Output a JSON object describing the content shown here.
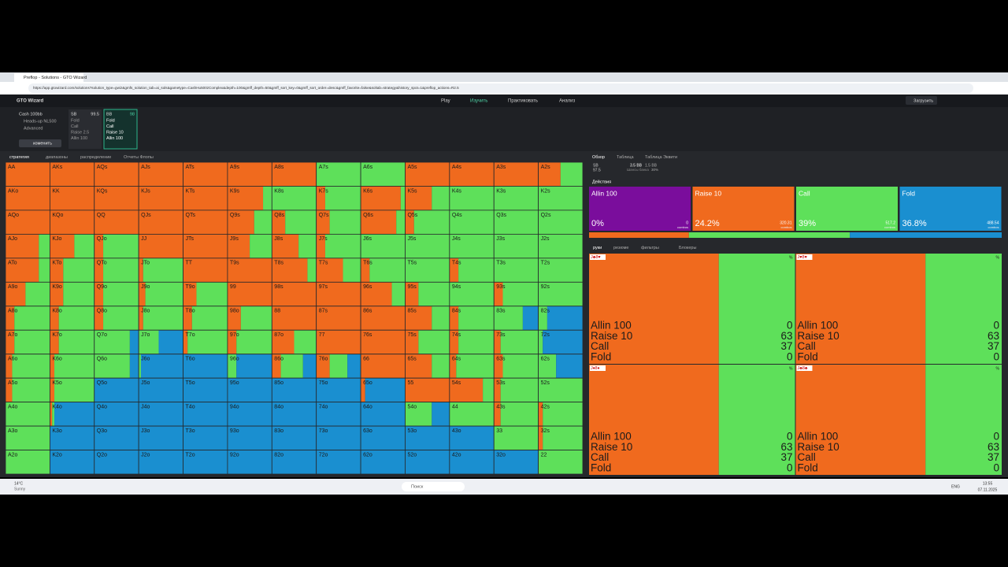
{
  "browser": {
    "tab": "Preflop - Solutions - GTO Wizard",
    "url": "https://app.gtowizard.com/solutions?solution_type=gwiz&gmfs_solution_tab=ai_sols&gametype=CashHu500zComplex&depth=100&gmff_depth=50&gmff_sort_key=0&gmff_sort_order=desc&gmff_favorite=false&soltab=strategy&history_spot=1&preflop_actions=R2.5"
  },
  "header": {
    "brand": "GTO Wizard",
    "nav": [
      "Play",
      "Изучить",
      "Практиковать",
      "Анализ"
    ],
    "upload": "Загрузить"
  },
  "setup": {
    "game": "Cash 100bb",
    "format": "Heads-up NL500",
    "level": "Advanced",
    "change": "изменить"
  },
  "positions": [
    {
      "name": "SB",
      "stack": "99.5",
      "actions": [
        "Fold",
        "Call",
        "Raise 2.5",
        "Allin 100"
      ]
    },
    {
      "name": "BB",
      "stack": "98",
      "actions": [
        "Fold",
        "Call",
        "Raise 10",
        "Allin 100"
      ]
    }
  ],
  "grid_tabs": [
    "стратегия",
    "диапазоны",
    "распределение",
    "Отчеты Флопы"
  ],
  "grid": {
    "hands": [
      [
        "AA",
        "AKs",
        "AQs",
        "AJs",
        "ATs",
        "A9s",
        "A8s",
        "A7s",
        "A6s",
        "A5s",
        "A4s",
        "A3s",
        "A2s"
      ],
      [
        "AKo",
        "KK",
        "KQs",
        "KJs",
        "KTs",
        "K9s",
        "K8s",
        "K7s",
        "K6s",
        "K5s",
        "K4s",
        "K3s",
        "K2s"
      ],
      [
        "AQo",
        "KQo",
        "QQ",
        "QJs",
        "QTs",
        "Q9s",
        "Q8s",
        "Q7s",
        "Q6s",
        "Q5s",
        "Q4s",
        "Q3s",
        "Q2s"
      ],
      [
        "AJo",
        "KJo",
        "QJo",
        "JJ",
        "JTs",
        "J9s",
        "J8s",
        "J7s",
        "J6s",
        "J5s",
        "J4s",
        "J3s",
        "J2s"
      ],
      [
        "ATo",
        "KTo",
        "QTo",
        "JTo",
        "TT",
        "T9s",
        "T8s",
        "T7s",
        "T6s",
        "T5s",
        "T4s",
        "T3s",
        "T2s"
      ],
      [
        "A9o",
        "K9o",
        "Q9o",
        "J9o",
        "T9o",
        "99",
        "98s",
        "97s",
        "96s",
        "95s",
        "94s",
        "93s",
        "92s"
      ],
      [
        "A8o",
        "K8o",
        "Q8o",
        "J8o",
        "T8o",
        "98o",
        "88",
        "87s",
        "86s",
        "85s",
        "84s",
        "83s",
        "82s"
      ],
      [
        "A7o",
        "K7o",
        "Q7o",
        "J7o",
        "T7o",
        "97o",
        "87o",
        "77",
        "76s",
        "75s",
        "74s",
        "73s",
        "72s"
      ],
      [
        "A6o",
        "K6o",
        "Q6o",
        "J6o",
        "T6o",
        "96o",
        "86o",
        "76o",
        "66",
        "65s",
        "64s",
        "63s",
        "62s"
      ],
      [
        "A5o",
        "K5o",
        "Q5o",
        "J5o",
        "T5o",
        "95o",
        "85o",
        "75o",
        "65o",
        "55",
        "54s",
        "53s",
        "52s"
      ],
      [
        "A4o",
        "K4o",
        "Q4o",
        "J4o",
        "T4o",
        "94o",
        "84o",
        "74o",
        "64o",
        "54o",
        "44",
        "43s",
        "42s"
      ],
      [
        "A3o",
        "K3o",
        "Q3o",
        "J3o",
        "T3o",
        "93o",
        "83o",
        "73o",
        "63o",
        "53o",
        "43o",
        "33",
        "32s"
      ],
      [
        "A2o",
        "K2o",
        "Q2o",
        "J2o",
        "T2o",
        "92o",
        "82o",
        "72o",
        "62o",
        "52o",
        "42o",
        "32o",
        "22"
      ]
    ],
    "raise": [
      [
        100,
        100,
        100,
        100,
        100,
        100,
        100,
        0,
        0,
        100,
        100,
        100,
        50
      ],
      [
        100,
        100,
        100,
        100,
        100,
        80,
        0,
        20,
        90,
        60,
        0,
        0,
        0
      ],
      [
        100,
        100,
        100,
        100,
        100,
        60,
        30,
        30,
        80,
        20,
        0,
        0,
        0
      ],
      [
        75,
        55,
        20,
        100,
        100,
        50,
        60,
        20,
        0,
        0,
        0,
        0,
        0
      ],
      [
        75,
        30,
        20,
        10,
        100,
        100,
        80,
        60,
        20,
        0,
        20,
        0,
        0
      ],
      [
        45,
        30,
        20,
        15,
        30,
        100,
        100,
        100,
        70,
        30,
        0,
        20,
        0
      ],
      [
        20,
        20,
        20,
        10,
        20,
        30,
        100,
        100,
        100,
        60,
        20,
        0,
        0
      ],
      [
        20,
        20,
        0,
        0,
        10,
        20,
        50,
        100,
        100,
        30,
        20,
        15,
        0
      ],
      [
        15,
        10,
        0,
        0,
        0,
        0,
        20,
        30,
        100,
        60,
        15,
        20,
        0
      ],
      [
        15,
        10,
        0,
        0,
        0,
        0,
        0,
        0,
        10,
        100,
        75,
        15,
        0
      ],
      [
        0,
        5,
        0,
        0,
        0,
        0,
        0,
        0,
        0,
        0,
        0,
        15,
        10
      ],
      [
        0,
        0,
        0,
        0,
        0,
        0,
        0,
        0,
        0,
        0,
        0,
        0,
        10
      ],
      [
        0,
        0,
        0,
        0,
        0,
        0,
        0,
        0,
        0,
        0,
        0,
        0,
        0
      ]
    ],
    "call": [
      [
        0,
        0,
        0,
        0,
        0,
        0,
        0,
        100,
        100,
        0,
        0,
        0,
        50
      ],
      [
        0,
        0,
        0,
        0,
        0,
        20,
        100,
        80,
        10,
        40,
        100,
        100,
        100
      ],
      [
        0,
        0,
        0,
        0,
        0,
        40,
        70,
        70,
        20,
        80,
        100,
        100,
        100
      ],
      [
        25,
        45,
        80,
        0,
        0,
        50,
        40,
        80,
        100,
        100,
        100,
        100,
        100
      ],
      [
        25,
        70,
        80,
        90,
        0,
        0,
        20,
        40,
        80,
        100,
        80,
        100,
        100
      ],
      [
        55,
        70,
        80,
        85,
        70,
        0,
        0,
        0,
        30,
        70,
        100,
        80,
        100
      ],
      [
        80,
        80,
        80,
        90,
        80,
        70,
        0,
        0,
        0,
        40,
        80,
        65,
        20
      ],
      [
        80,
        80,
        80,
        45,
        90,
        80,
        50,
        0,
        0,
        70,
        80,
        85,
        10
      ],
      [
        85,
        90,
        80,
        5,
        0,
        20,
        50,
        40,
        0,
        40,
        85,
        80,
        40
      ],
      [
        85,
        90,
        0,
        0,
        0,
        0,
        0,
        0,
        0,
        0,
        25,
        85,
        100
      ],
      [
        100,
        5,
        0,
        0,
        0,
        0,
        0,
        0,
        0,
        60,
        100,
        85,
        90
      ],
      [
        100,
        0,
        0,
        0,
        0,
        0,
        0,
        0,
        0,
        0,
        0,
        100,
        90
      ],
      [
        100,
        0,
        0,
        0,
        0,
        0,
        0,
        0,
        0,
        0,
        0,
        0,
        100
      ]
    ],
    "fold": [
      [
        0,
        0,
        0,
        0,
        0,
        0,
        0,
        0,
        0,
        0,
        0,
        0,
        0
      ],
      [
        0,
        0,
        0,
        0,
        0,
        0,
        0,
        0,
        0,
        0,
        0,
        0,
        0
      ],
      [
        0,
        0,
        0,
        0,
        0,
        0,
        0,
        0,
        0,
        0,
        0,
        0,
        0
      ],
      [
        0,
        0,
        0,
        0,
        0,
        0,
        0,
        0,
        0,
        0,
        0,
        0,
        0
      ],
      [
        0,
        0,
        0,
        0,
        0,
        0,
        0,
        0,
        0,
        0,
        0,
        0,
        0
      ],
      [
        0,
        0,
        0,
        0,
        0,
        0,
        0,
        0,
        0,
        0,
        0,
        0,
        0
      ],
      [
        0,
        0,
        0,
        0,
        0,
        0,
        0,
        0,
        0,
        0,
        0,
        35,
        80
      ],
      [
        0,
        0,
        20,
        55,
        0,
        0,
        0,
        0,
        0,
        0,
        0,
        0,
        90
      ],
      [
        0,
        0,
        20,
        95,
        100,
        80,
        30,
        30,
        0,
        0,
        0,
        0,
        60
      ],
      [
        0,
        0,
        100,
        100,
        100,
        100,
        100,
        100,
        90,
        0,
        0,
        0,
        0
      ],
      [
        0,
        90,
        100,
        100,
        100,
        100,
        100,
        100,
        100,
        40,
        0,
        0,
        0
      ],
      [
        0,
        100,
        100,
        100,
        100,
        100,
        100,
        100,
        100,
        100,
        100,
        0,
        0
      ],
      [
        0,
        100,
        100,
        100,
        100,
        100,
        100,
        100,
        100,
        100,
        100,
        100,
        0
      ]
    ]
  },
  "overview": {
    "tabs": [
      "Обзор",
      "Таблица",
      "Таблица Эквити"
    ],
    "pos": "SB",
    "stack": "97.5",
    "pot": "3.5 BB",
    "call_amount": "1.5 BB",
    "odds_label": "Шансы банка",
    "odds": "30%",
    "actions_label": "Действия"
  },
  "actions": [
    {
      "name": "Allin 100",
      "color": "#7a0d9c",
      "pct": {
        "value": 0,
        "label": "0%"
      },
      "combos": "0",
      "combos_label": "combos"
    },
    {
      "name": "Raise 10",
      "color": "#f06a1e",
      "pct": {
        "value": 24.2,
        "label": "24.2%"
      },
      "combos": "320.31",
      "combos_label": "combos"
    },
    {
      "name": "Call",
      "color": "#5ee05a",
      "pct": {
        "value": 39,
        "label": "39%"
      },
      "combos": "517.2",
      "combos_label": "combos"
    },
    {
      "name": "Fold",
      "color": "#1a8fd0",
      "pct": {
        "value": 36.8,
        "label": "36.8%"
      },
      "combos": "488.54",
      "combos_label": "combos"
    }
  ],
  "hand_tabs": [
    "руки",
    "резюме",
    "фильтры",
    "Блокеры"
  ],
  "hand_cards": [
    {
      "cards": "J♣8♥",
      "unit": "%",
      "rows": [
        [
          "Allin 100",
          0
        ],
        [
          "Raise 10",
          63
        ],
        [
          "Call",
          37
        ],
        [
          "Fold",
          0
        ]
      ]
    },
    {
      "cards": "J♥8♥",
      "unit": "%",
      "rows": [
        [
          "Allin 100",
          0
        ],
        [
          "Raise 10",
          63
        ],
        [
          "Call",
          37
        ],
        [
          "Fold",
          0
        ]
      ]
    },
    {
      "cards": "J♦8♦",
      "unit": "%",
      "rows": [
        [
          "Allin 100",
          0
        ],
        [
          "Raise 10",
          63
        ],
        [
          "Call",
          37
        ],
        [
          "Fold",
          0
        ]
      ]
    },
    {
      "cards": "J♣8♣",
      "unit": "%",
      "rows": [
        [
          "Allin 100",
          0
        ],
        [
          "Raise 10",
          63
        ],
        [
          "Call",
          37
        ],
        [
          "Fold",
          0
        ]
      ]
    }
  ],
  "taskbar": {
    "temp": "14°C",
    "weather": "Sunny",
    "search": "Поиск",
    "lang": "ENG",
    "time": "13:55",
    "date": "07.11.2025"
  }
}
